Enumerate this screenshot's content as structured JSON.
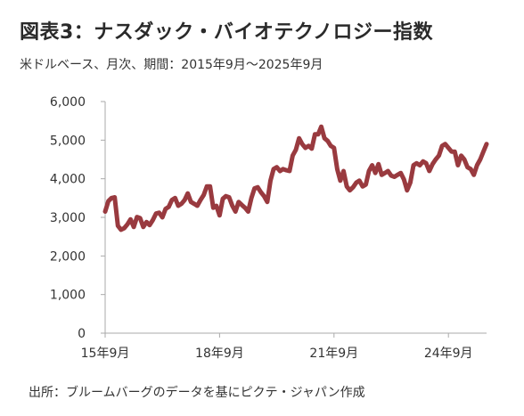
{
  "header": {
    "title": "図表3：ナスダック・バイオテクノロジー指数",
    "subtitle": "米ドルベース、月次、期間：2015年9月～2025年9月"
  },
  "footer": {
    "source": "出所：ブルームバーグのデータを基にピクテ・ジャパン作成"
  },
  "colors": {
    "line": "#993a3f",
    "axis": "#aaaaaa"
  },
  "chart_data": {
    "type": "line",
    "title": "",
    "xlabel": "",
    "ylabel": "",
    "ylim": [
      0,
      6000
    ],
    "yticks": [
      0,
      1000,
      2000,
      3000,
      4000,
      5000,
      6000
    ],
    "ytick_labels": [
      "0",
      "1,000",
      "2,000",
      "3,000",
      "4,000",
      "5,000",
      "6,000"
    ],
    "xlim": [
      0,
      120
    ],
    "xticks": [
      0,
      36,
      72,
      108
    ],
    "xtick_labels": [
      "15年9月",
      "18年9月",
      "21年9月",
      "24年9月"
    ],
    "grid": false,
    "series": [
      {
        "name": "",
        "x": [
          0,
          1,
          2,
          3,
          4,
          5,
          6,
          7,
          8,
          9,
          10,
          11,
          12,
          13,
          14,
          15,
          16,
          17,
          18,
          19,
          20,
          21,
          22,
          23,
          24,
          25,
          26,
          27,
          28,
          29,
          30,
          31,
          32,
          33,
          34,
          35,
          36,
          37,
          38,
          39,
          40,
          41,
          42,
          43,
          44,
          45,
          46,
          47,
          48,
          49,
          50,
          51,
          52,
          53,
          54,
          55,
          56,
          57,
          58,
          59,
          60,
          61,
          62,
          63,
          64,
          65,
          66,
          67,
          68,
          69,
          70,
          71,
          72,
          73,
          74,
          75,
          76,
          77,
          78,
          79,
          80,
          81,
          82,
          83,
          84,
          85,
          86,
          87,
          88,
          89,
          90,
          91,
          92,
          93,
          94,
          95,
          96,
          97,
          98,
          99,
          100,
          101,
          102,
          103,
          104,
          105,
          106,
          107,
          108,
          109,
          110,
          111,
          112,
          113,
          114,
          115,
          116,
          117,
          118,
          119,
          120
        ],
        "values": [
          3150,
          3420,
          3500,
          3520,
          2780,
          2680,
          2720,
          2820,
          2950,
          2750,
          3010,
          2980,
          2750,
          2880,
          2800,
          2930,
          3100,
          3120,
          3000,
          3220,
          3270,
          3450,
          3500,
          3300,
          3350,
          3450,
          3620,
          3400,
          3350,
          3300,
          3450,
          3580,
          3800,
          3800,
          3250,
          3300,
          3050,
          3480,
          3550,
          3520,
          3300,
          3150,
          3400,
          3320,
          3250,
          3150,
          3500,
          3750,
          3780,
          3650,
          3550,
          3400,
          3950,
          4250,
          4300,
          4200,
          4250,
          4220,
          4200,
          4600,
          4750,
          5050,
          4900,
          4800,
          4850,
          4780,
          5150,
          5150,
          5350,
          5050,
          4980,
          4850,
          4800,
          4250,
          3950,
          4200,
          3800,
          3700,
          3780,
          3900,
          3950,
          3800,
          3850,
          4200,
          4350,
          4150,
          4380,
          4100,
          4150,
          4200,
          4080,
          4050,
          4100,
          4150,
          3980,
          3700,
          3900,
          4350,
          4400,
          4350,
          4450,
          4400,
          4200,
          4380,
          4500,
          4600,
          4850,
          4900,
          4800,
          4700,
          4700,
          4350,
          4600,
          4500,
          4300,
          4250,
          4100,
          4350,
          4500,
          4700,
          4900
        ]
      }
    ]
  }
}
